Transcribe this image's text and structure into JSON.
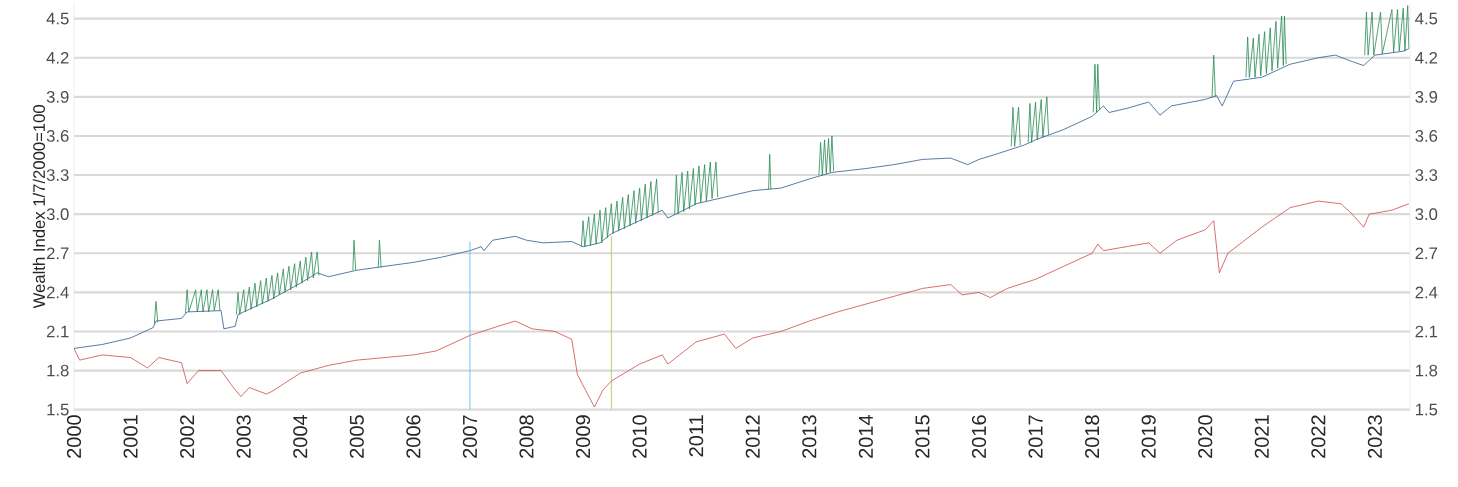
{
  "chart_data": {
    "type": "line",
    "ylabel": "Wealth Index 1/7/2000=100",
    "xlim": [
      2000,
      2023.62
    ],
    "xticks": [
      2000,
      2001,
      2002,
      2003,
      2004,
      2005,
      2006,
      2007,
      2008,
      2009,
      2010,
      2011,
      2012,
      2013,
      2014,
      2015,
      2016,
      2017,
      2018,
      2019,
      2020,
      2021,
      2022,
      2023
    ],
    "ylim": [
      1.5,
      4.62
    ],
    "yticks": [
      {
        "value": 1.5,
        "label": "1.5"
      },
      {
        "value": 1.8,
        "label": "1.8"
      },
      {
        "value": 2.1,
        "label": "2.1"
      },
      {
        "value": 2.4,
        "label": "2.4"
      },
      {
        "value": 2.7,
        "label": "2.7"
      },
      {
        "value": 3.0,
        "label": "3.0"
      },
      {
        "value": 3.3,
        "label": "3.3"
      },
      {
        "value": 3.6,
        "label": "3.6"
      },
      {
        "value": 3.9,
        "label": "3.9"
      },
      {
        "value": 4.2,
        "label": "4.2"
      },
      {
        "value": 4.5,
        "label": "4.5"
      }
    ],
    "y2lim": [
      1.5,
      4.62
    ],
    "y2ticks": [
      {
        "value": 1.5,
        "label": "1.5"
      },
      {
        "value": 1.8,
        "label": "1.8"
      },
      {
        "value": 2.1,
        "label": "2.1"
      },
      {
        "value": 2.4,
        "label": "2.4"
      },
      {
        "value": 2.7,
        "label": "2.7"
      },
      {
        "value": 3.0,
        "label": "3.0"
      },
      {
        "value": 3.3,
        "label": "3.3"
      },
      {
        "value": 3.6,
        "label": "3.6"
      },
      {
        "value": 3.9,
        "label": "3.9"
      },
      {
        "value": 4.2,
        "label": "4.2"
      },
      {
        "value": 4.5,
        "label": "4.5"
      }
    ],
    "grid": "y",
    "legend": false,
    "series": [
      {
        "color": "#2f5b8f",
        "x": [
          2000,
          2000.5,
          2001,
          2001.4,
          2001.45,
          2001.9,
          2002,
          2002.6,
          2002.65,
          2002.85,
          2002.9,
          2003.5,
          2004,
          2004.3,
          2004.5,
          2005,
          2005.5,
          2006,
          2006.5,
          2007,
          2007.2,
          2007.25,
          2007.4,
          2007.8,
          2008,
          2008.3,
          2008.8,
          2009,
          2009.3,
          2009.5,
          2010,
          2010.4,
          2010.5,
          2011,
          2011.5,
          2012,
          2012.5,
          2013,
          2013.4,
          2014,
          2014.5,
          2015,
          2015.5,
          2015.8,
          2016,
          2016.3,
          2016.8,
          2017,
          2017.5,
          2018,
          2018.2,
          2018.3,
          2018.6,
          2019,
          2019.2,
          2019.4,
          2020,
          2020.2,
          2020.3,
          2020.5,
          2021,
          2021.5,
          2022,
          2022.3,
          2022.6,
          2022.8,
          2023,
          2023.5,
          2023.6
        ],
        "values": [
          1.97,
          2.0,
          2.05,
          2.13,
          2.18,
          2.2,
          2.25,
          2.26,
          2.12,
          2.14,
          2.23,
          2.35,
          2.47,
          2.55,
          2.52,
          2.57,
          2.6,
          2.63,
          2.67,
          2.72,
          2.75,
          2.72,
          2.8,
          2.83,
          2.8,
          2.78,
          2.79,
          2.75,
          2.78,
          2.85,
          2.95,
          3.03,
          2.97,
          3.08,
          3.13,
          3.18,
          3.2,
          3.27,
          3.32,
          3.35,
          3.38,
          3.42,
          3.43,
          3.38,
          3.42,
          3.46,
          3.53,
          3.57,
          3.65,
          3.75,
          3.83,
          3.78,
          3.81,
          3.86,
          3.76,
          3.83,
          3.88,
          3.91,
          3.83,
          4.02,
          4.05,
          4.15,
          4.2,
          4.22,
          4.17,
          4.14,
          4.22,
          4.25,
          4.27
        ]
      },
      {
        "color": "#d04a4a",
        "x": [
          2000,
          2000.1,
          2000.5,
          2001,
          2001.3,
          2001.5,
          2001.9,
          2002,
          2002.2,
          2002.6,
          2002.8,
          2002.95,
          2003.1,
          2003.4,
          2003.5,
          2004,
          2004.5,
          2005,
          2005.5,
          2006,
          2006.4,
          2007,
          2007.5,
          2007.8,
          2008.1,
          2008.5,
          2008.8,
          2008.9,
          2009.2,
          2009.35,
          2009.5,
          2010,
          2010.4,
          2010.5,
          2011,
          2011.5,
          2011.7,
          2012,
          2012.5,
          2013,
          2013.5,
          2014,
          2014.5,
          2015,
          2015.5,
          2015.7,
          2016,
          2016.2,
          2016.5,
          2017,
          2017.5,
          2018,
          2018.1,
          2018.2,
          2018.6,
          2019,
          2019.2,
          2019.5,
          2020,
          2020.15,
          2020.25,
          2020.4,
          2021,
          2021.5,
          2022,
          2022.4,
          2022.6,
          2022.8,
          2022.9,
          2023.3,
          2023.6
        ],
        "values": [
          1.97,
          1.88,
          1.92,
          1.9,
          1.82,
          1.9,
          1.86,
          1.7,
          1.8,
          1.8,
          1.68,
          1.6,
          1.67,
          1.62,
          1.64,
          1.78,
          1.84,
          1.88,
          1.9,
          1.92,
          1.95,
          2.07,
          2.14,
          2.18,
          2.12,
          2.1,
          2.04,
          1.77,
          1.52,
          1.65,
          1.72,
          1.85,
          1.92,
          1.85,
          2.02,
          2.08,
          1.97,
          2.05,
          2.1,
          2.18,
          2.25,
          2.31,
          2.37,
          2.43,
          2.46,
          2.38,
          2.4,
          2.36,
          2.43,
          2.5,
          2.6,
          2.7,
          2.77,
          2.72,
          2.75,
          2.78,
          2.7,
          2.8,
          2.88,
          2.95,
          2.55,
          2.7,
          2.9,
          3.05,
          3.1,
          3.08,
          3.0,
          2.9,
          3.0,
          3.03,
          3.08
        ]
      },
      {
        "color": "#2a8a55",
        "x": [
          2001.42,
          2001.45,
          2001.48,
          2001.7,
          2001.97,
          2002.0,
          2002.03,
          2002.15,
          2002.18,
          2002.25,
          2002.28,
          2002.35,
          2002.38,
          2002.45,
          2002.48,
          2002.55,
          2002.58,
          2002.7,
          2002.87,
          2002.9,
          2002.93,
          2003.0,
          2003.03,
          2003.1,
          2003.13,
          2003.2,
          2003.23,
          2003.3,
          2003.33,
          2003.4,
          2003.43,
          2003.5,
          2003.53,
          2003.6,
          2003.63,
          2003.7,
          2003.73,
          2003.8,
          2003.83,
          2003.9,
          2003.93,
          2004.0,
          2004.03,
          2004.1,
          2004.13,
          2004.2,
          2004.23,
          2004.3,
          2004.33,
          2004.6,
          2004.93,
          2004.95,
          2004.98,
          2005.2,
          2005.38,
          2005.4,
          2005.43,
          2007,
          2008.97,
          2009.0,
          2009.03,
          2009.1,
          2009.13,
          2009.2,
          2009.23,
          2009.3,
          2009.33,
          2009.4,
          2009.43,
          2009.5,
          2009.53,
          2009.6,
          2009.63,
          2009.7,
          2009.73,
          2009.8,
          2009.83,
          2009.9,
          2009.93,
          2010.0,
          2010.03,
          2010.1,
          2010.13,
          2010.2,
          2010.23,
          2010.3,
          2010.33,
          2010.5,
          2010.62,
          2010.65,
          2010.68,
          2010.75,
          2010.78,
          2010.85,
          2010.88,
          2010.95,
          2010.98,
          2011.05,
          2011.08,
          2011.15,
          2011.18,
          2011.25,
          2011.28,
          2011.35,
          2011.38,
          2011.8,
          2012.28,
          2012.3,
          2012.32,
          2012.8,
          2013.17,
          2013.2,
          2013.23,
          2013.27,
          2013.3,
          2013.34,
          2013.37,
          2013.4,
          2013.43,
          2015,
          2016.57,
          2016.6,
          2016.63,
          2016.7,
          2016.73,
          2016.8,
          2016.87,
          2016.9,
          2016.93,
          2017.0,
          2017.03,
          2017.1,
          2017.13,
          2017.2,
          2017.23,
          2017.6,
          2018.02,
          2018.05,
          2018.08,
          2018.1,
          2018.13,
          2019,
          2020.12,
          2020.15,
          2020.18,
          2020.4,
          2020.72,
          2020.75,
          2020.78,
          2020.85,
          2020.88,
          2020.95,
          2020.98,
          2021.05,
          2021.08,
          2021.15,
          2021.18,
          2021.25,
          2021.28,
          2021.35,
          2021.38,
          2021.4,
          2021.43,
          2022,
          2022.82,
          2022.85,
          2022.88,
          2022.95,
          2022.98,
          2023.1,
          2023.13,
          2023.3,
          2023.33,
          2023.4,
          2023.43,
          2023.5,
          2023.53,
          2023.58,
          2023.6
        ],
        "values": [
          2.16,
          2.33,
          2.17,
          null,
          2.24,
          2.42,
          2.25,
          2.42,
          2.25,
          2.42,
          2.25,
          2.42,
          2.25,
          2.42,
          2.26,
          2.42,
          2.26,
          null,
          2.23,
          2.4,
          2.23,
          2.42,
          2.25,
          2.44,
          2.27,
          2.47,
          2.29,
          2.49,
          2.31,
          2.51,
          2.33,
          2.53,
          2.35,
          2.55,
          2.38,
          2.58,
          2.4,
          2.6,
          2.42,
          2.62,
          2.44,
          2.64,
          2.47,
          2.67,
          2.49,
          2.71,
          2.51,
          2.71,
          2.53,
          null,
          2.57,
          2.8,
          2.57,
          null,
          2.59,
          2.8,
          2.59,
          null,
          2.75,
          2.95,
          2.75,
          2.98,
          2.76,
          3.0,
          2.77,
          3.03,
          2.78,
          3.05,
          2.82,
          3.08,
          2.85,
          3.1,
          2.87,
          3.13,
          2.89,
          3.15,
          2.91,
          3.18,
          2.93,
          3.2,
          2.95,
          3.23,
          2.97,
          3.25,
          2.99,
          3.27,
          3.01,
          null,
          3.0,
          3.3,
          3.0,
          3.32,
          3.02,
          3.33,
          3.04,
          3.35,
          3.07,
          3.37,
          3.09,
          3.38,
          3.1,
          3.4,
          3.12,
          3.4,
          3.13,
          null,
          3.19,
          3.46,
          3.19,
          null,
          3.3,
          3.55,
          3.3,
          3.57,
          3.31,
          3.58,
          3.32,
          3.6,
          3.33,
          null,
          3.52,
          3.82,
          3.52,
          3.82,
          3.53,
          null,
          3.55,
          3.85,
          3.55,
          3.86,
          3.57,
          3.88,
          3.59,
          3.9,
          3.61,
          null,
          3.78,
          4.15,
          3.78,
          4.15,
          3.8,
          null,
          3.9,
          4.22,
          3.9,
          null,
          4.05,
          4.36,
          4.05,
          4.35,
          4.05,
          4.38,
          4.06,
          4.4,
          4.08,
          4.43,
          4.1,
          4.48,
          4.12,
          4.52,
          4.14,
          4.52,
          4.15,
          null,
          4.22,
          4.55,
          4.22,
          4.55,
          4.22,
          4.55,
          4.23,
          4.57,
          4.24,
          4.57,
          4.25,
          4.58,
          4.25,
          4.6,
          4.27
        ]
      },
      {
        "color": "#4db8e8",
        "x": [
          2007,
          2007
        ],
        "values": [
          1.5,
          2.79
        ]
      },
      {
        "color": "#9bc53d",
        "x": [
          2009.5,
          2009.5
        ],
        "values": [
          1.5,
          2.83
        ]
      }
    ]
  }
}
